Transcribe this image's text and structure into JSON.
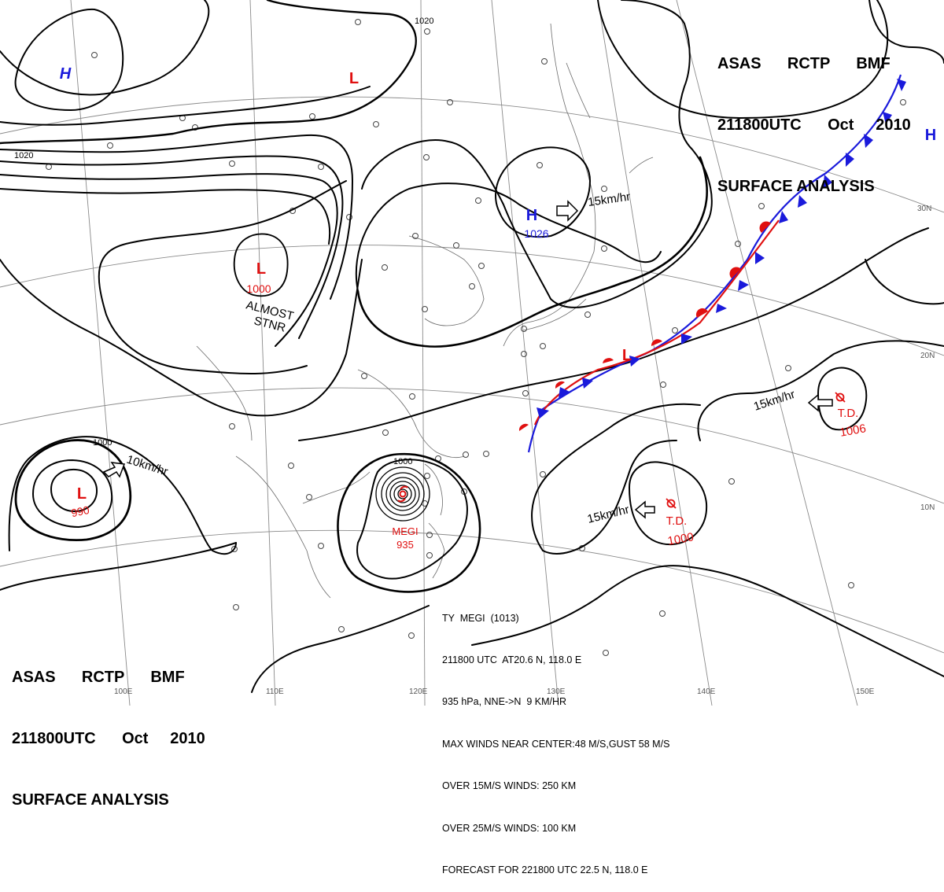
{
  "header": {
    "line1": [
      "ASAS",
      "RCTP",
      "BMF"
    ],
    "line2": [
      "211800UTC",
      "Oct",
      "2010"
    ],
    "line3": "SURFACE ANALYSIS"
  },
  "typhoon_info": {
    "lines": [
      "TY  MEGI  (1013)",
      "211800 UTC  AT20.6 N, 118.0 E",
      "935 hPa, NNE->N  9 KM/HR",
      "MAX WINDS NEAR CENTER:48 M/S,GUST 58 M/S",
      "OVER 15M/S WINDS: 250 KM",
      "OVER 25M/S WINDS: 100 KM",
      "FORECAST FOR 221800 UTC 22.5 N, 118.0 E"
    ]
  },
  "pressure_centers": [
    {
      "symbol": "H",
      "value": "",
      "color": "#1a1adb"
    },
    {
      "symbol": "L",
      "value": "",
      "color": "#e01010"
    },
    {
      "symbol": "H",
      "value": "1026",
      "color": "#1a1adb"
    },
    {
      "symbol": "L",
      "value": "1000",
      "color": "#e01010"
    },
    {
      "symbol": "L",
      "value": "990",
      "color": "#e01010"
    },
    {
      "symbol": "L",
      "value": "",
      "color": "#e01010"
    },
    {
      "symbol": "H",
      "value": "",
      "color": "#1a1adb"
    }
  ],
  "storms": [
    {
      "name": "MEGI",
      "pressure": "935",
      "color": "#e01010"
    },
    {
      "name": "T.D.",
      "pressure": "1006",
      "color": "#e01010"
    },
    {
      "name": "T.D.",
      "pressure": "1000",
      "color": "#e01010"
    }
  ],
  "motion_labels": [
    "15km/hr",
    "10km/hr",
    "15km/hr",
    "15km/hr"
  ],
  "annotations": {
    "almost_line1": "ALMOST",
    "almost_line2": "STNR"
  },
  "isobar_labels": [
    "1020",
    "1020",
    "1000",
    "1000"
  ],
  "grid_labels": {
    "lon": [
      "100E",
      "110E",
      "120E",
      "130E",
      "140E",
      "150E"
    ],
    "lat": [
      "30N",
      "20N",
      "10N"
    ]
  },
  "colors": {
    "high": "#1a1adb",
    "low": "#e01010",
    "cold_front": "#1a1adb",
    "warm_front": "#e01010"
  }
}
